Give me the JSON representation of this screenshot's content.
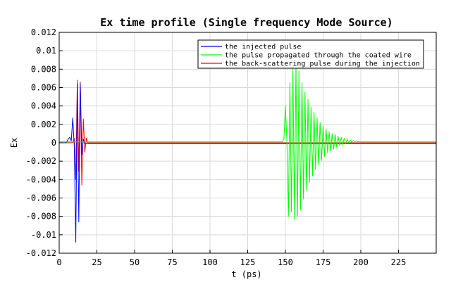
{
  "chart_data": {
    "type": "line",
    "title": "Ex time profile (Single frequency Mode Source)",
    "xlabel": "t (ps)",
    "ylabel": "Ex",
    "xlim": [
      0,
      250
    ],
    "ylim": [
      -0.012,
      0.012
    ],
    "grid": true,
    "legend_position": "top-right",
    "x_ticks": [
      0,
      25,
      50,
      75,
      100,
      125,
      150,
      175,
      200,
      225
    ],
    "x_tick_labels": [
      "0",
      "25",
      "50",
      "75",
      "100",
      "125",
      "150",
      "175",
      "200",
      "225"
    ],
    "y_ticks": [
      0.012,
      0.01,
      0.008,
      0.006,
      0.004,
      0.002,
      0,
      -0.002,
      -0.004,
      -0.006,
      -0.008,
      -0.01,
      -0.012
    ],
    "y_tick_labels": [
      "0.012",
      "0.01",
      "0.008",
      "0.006",
      "0.004",
      "0.002",
      "0",
      "-0.002",
      "-0.004",
      "-0.006",
      "-0.008",
      "-0.01",
      "-0.012"
    ],
    "series": [
      {
        "name": "the injected pulse",
        "color": "#0000ff",
        "baseline": -0.0001,
        "x": [
          0,
          4,
          5,
          6,
          7,
          8,
          9,
          10,
          11,
          12,
          13,
          14,
          15,
          16,
          17,
          18,
          250
        ],
        "y": [
          0,
          0,
          0.0001,
          0.0004,
          0.0006,
          0.0002,
          0.0027,
          -0.0004,
          -0.0108,
          0.0064,
          -0.0086,
          0.0064,
          -0.0013,
          0.0004,
          -0.0001,
          -0.0001,
          -0.0001
        ]
      },
      {
        "name": "the pulse propagated through the coated wire",
        "color": "#00ff00",
        "baseline": 0.0001,
        "x": [
          0,
          148,
          149,
          150,
          151,
          152,
          153,
          154,
          155,
          156,
          157,
          158,
          159,
          160,
          161,
          162,
          163,
          164,
          165,
          166,
          167,
          168,
          169,
          170,
          171,
          172,
          173,
          174,
          175,
          176,
          177,
          178,
          179,
          180,
          181,
          182,
          183,
          184,
          185,
          186,
          187,
          188,
          189,
          190,
          191,
          192,
          193,
          194,
          195,
          196,
          197,
          198,
          199,
          200,
          202,
          205,
          210,
          250
        ],
        "y": [
          0.0001,
          0.0001,
          0.0004,
          0.004,
          0.0001,
          -0.008,
          0.0065,
          -0.0075,
          0.0082,
          -0.0083,
          0.0085,
          -0.008,
          0.0078,
          -0.0073,
          0.0065,
          -0.0061,
          0.0055,
          -0.0052,
          0.0047,
          -0.0043,
          0.0039,
          -0.0036,
          0.0033,
          -0.0029,
          0.0027,
          -0.0024,
          0.0022,
          -0.0019,
          0.0018,
          -0.0015,
          0.0015,
          -0.0011,
          0.0012,
          -0.0009,
          0.001,
          -0.0007,
          0.0009,
          -0.0005,
          0.0007,
          -0.0003,
          0.0006,
          -0.0002,
          0.0005,
          -0.0001,
          0.0004,
          0.0,
          0.0003,
          5e-05,
          0.00025,
          0.0001,
          0.0002,
          0.0001,
          0.00015,
          0.0001,
          0.0001,
          0.0001,
          0.0001,
          0.0001
        ]
      },
      {
        "name": "the back-scattering pulse during the injection",
        "color": "#ff0000",
        "baseline": 0.0,
        "x": [
          0,
          9,
          10,
          11,
          12,
          13,
          14,
          15,
          16,
          17,
          18,
          19,
          250
        ],
        "y": [
          0,
          0,
          0.0005,
          -0.004,
          0.0068,
          -0.0031,
          0.0066,
          -0.0046,
          0.0026,
          -0.001,
          0.0005,
          0,
          0
        ]
      }
    ]
  }
}
